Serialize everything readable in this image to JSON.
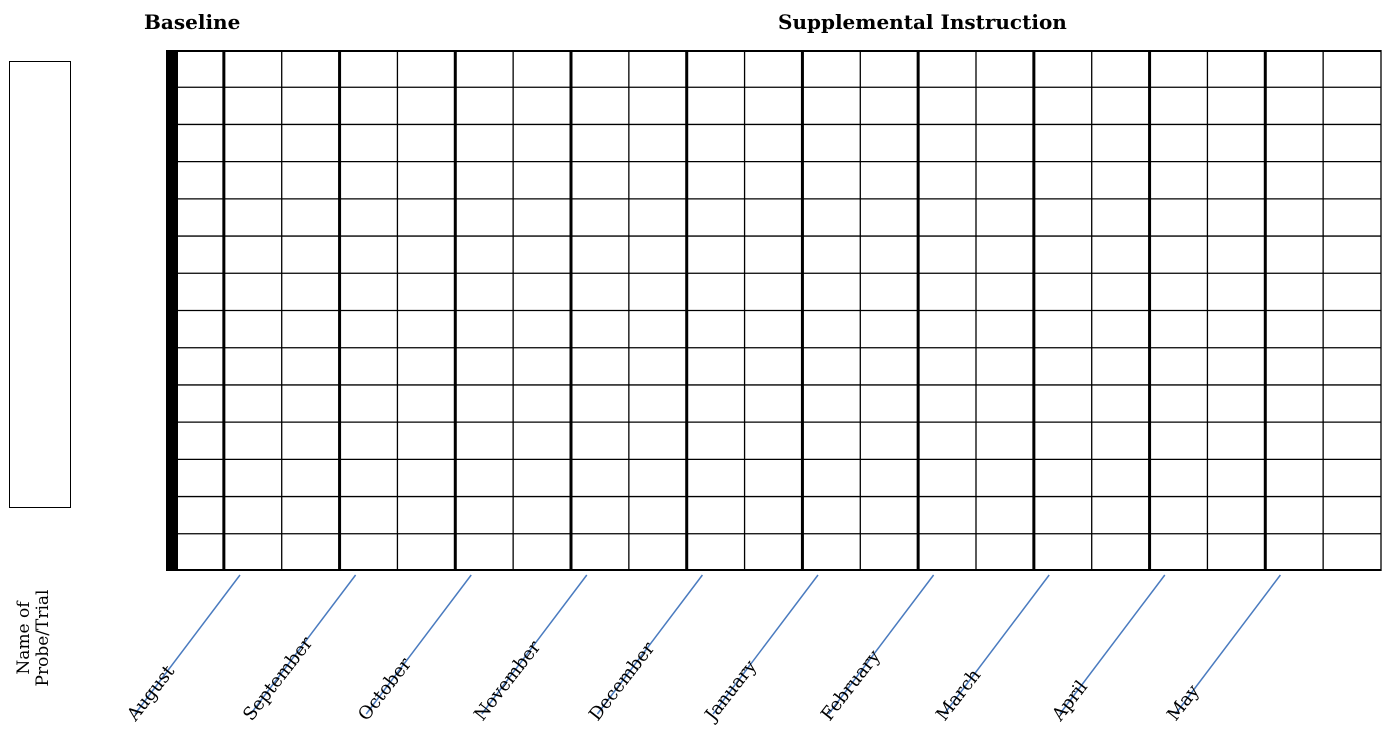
{
  "headings": {
    "baseline": "Baseline",
    "supplemental": "Supplemental Instruction"
  },
  "name_label": {
    "line1": "Name of",
    "line2": "Probe/Trial"
  },
  "grid": {
    "rows": 14,
    "columns": 21,
    "line_color": "#000000"
  },
  "months": [
    "August",
    "September",
    "October",
    "November",
    "December",
    "January",
    "February",
    "March",
    "April",
    "May"
  ],
  "month_line_color": "#4a7bbf"
}
